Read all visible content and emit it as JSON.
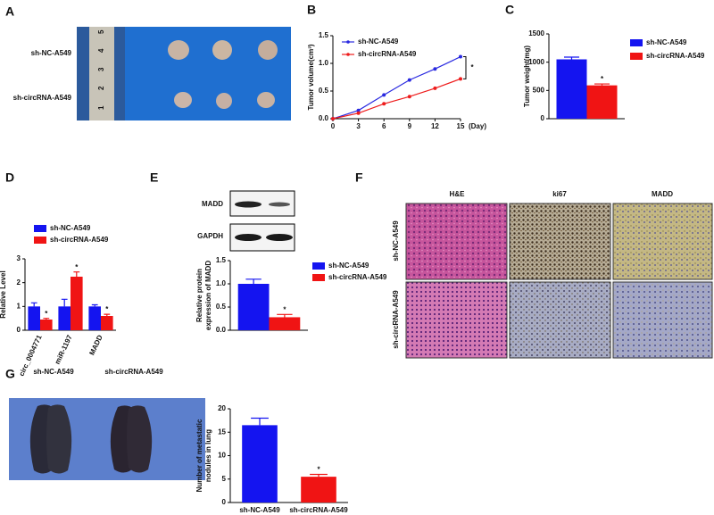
{
  "panel_letters": [
    "A",
    "B",
    "C",
    "D",
    "E",
    "F",
    "G"
  ],
  "photos": {
    "tumors": {
      "rows": [
        "sh-NC-A549",
        "sh-circRNA-A549"
      ],
      "ruler": [
        "1",
        "2",
        "3",
        "4",
        "5"
      ]
    },
    "blot": {
      "bands": [
        "MADD",
        "GAPDH"
      ]
    },
    "histology": {
      "columns": [
        "H&E",
        "ki67",
        "MADD"
      ],
      "rows": [
        "sh-NC-A549",
        "sh-circRNA-A549"
      ]
    },
    "lungs": {
      "columns": [
        "sh-NC-A549",
        "sh-circRNA-A549"
      ]
    }
  },
  "chart_data": [
    {
      "type": "line",
      "ylabel": "Tumor volume(cm³)",
      "xlabel": "(Day)",
      "x": [
        0,
        3,
        6,
        9,
        12,
        15
      ],
      "xlim": [
        0,
        15
      ],
      "xticks": [
        0,
        3,
        6,
        9,
        12,
        15
      ],
      "ylim": [
        0,
        1.5
      ],
      "yticks": [
        {
          "value": 0,
          "label": "0.0"
        },
        {
          "value": 0.5,
          "label": "0.5"
        },
        {
          "value": 1,
          "label": "1.0"
        },
        {
          "value": 1.5,
          "label": "1.5"
        }
      ],
      "series": [
        {
          "name": "sh-NC-A549",
          "color": "#2a2ae0",
          "values": [
            0,
            0.15,
            0.43,
            0.7,
            0.9,
            1.12
          ]
        },
        {
          "name": "sh-circRNA-A549",
          "color": "#ee1c1c",
          "values": [
            0,
            0.1,
            0.27,
            0.4,
            0.55,
            0.72
          ]
        }
      ],
      "annotations": [
        "*"
      ]
    },
    {
      "type": "bar",
      "ylabel": "Tumor weight(mg)",
      "categories": [
        null
      ],
      "ylim": [
        0,
        1500
      ],
      "yticks": [
        0,
        500,
        1000,
        1500
      ],
      "series": [
        {
          "name": "sh-NC-A549",
          "color": "#1414f0",
          "values": [
            1050
          ],
          "errors": [
            40
          ]
        },
        {
          "name": "sh-circRNA-A549",
          "color": "#f01414",
          "values": [
            590
          ],
          "errors": [
            25
          ]
        }
      ],
      "annotations": [
        "*"
      ]
    },
    {
      "type": "bar",
      "ylabel": "Relative Level",
      "categories": [
        "circ_0004771",
        "miR-1197",
        "MADD"
      ],
      "ylim": [
        0,
        3
      ],
      "yticks": [
        0,
        1,
        2,
        3
      ],
      "series": [
        {
          "name": "sh-NC-A549",
          "color": "#1414f0",
          "values": [
            1,
            1,
            1
          ],
          "errors": [
            0.15,
            0.3,
            0.07
          ]
        },
        {
          "name": "sh-circRNA-A549",
          "color": "#f01414",
          "values": [
            0.45,
            2.25,
            0.6
          ],
          "errors": [
            0.05,
            0.2,
            0.07
          ]
        }
      ],
      "annotations": [
        "*",
        "*",
        "*"
      ]
    },
    {
      "type": "bar",
      "ylabel_lines": [
        "Relative protein",
        "expression of MADD"
      ],
      "categories": [
        null
      ],
      "ylim": [
        0,
        1.5
      ],
      "yticks": [
        {
          "value": 0,
          "label": "0.0"
        },
        {
          "value": 0.5,
          "label": "0.5"
        },
        {
          "value": 1,
          "label": "1.0"
        },
        {
          "value": 1.5,
          "label": "1.5"
        }
      ],
      "series": [
        {
          "name": "sh-NC-A549",
          "color": "#1414f0",
          "values": [
            1
          ],
          "errors": [
            0.1
          ]
        },
        {
          "name": "sh-circRNA-A549",
          "color": "#f01414",
          "values": [
            0.28
          ],
          "errors": [
            0.06
          ]
        }
      ],
      "annotations": [
        "*"
      ]
    },
    {
      "type": "bar",
      "ylabel_lines": [
        "Number of metastatic",
        "nodules in lung"
      ],
      "categories": [
        "sh-NC-A549",
        "sh-circRNA-A549"
      ],
      "values": [
        16.5,
        5.5
      ],
      "errors": [
        1.5,
        0.5
      ],
      "colors": [
        "#1414f0",
        "#f01414"
      ],
      "ylim": [
        0,
        20
      ],
      "yticks": [
        0,
        5,
        10,
        15,
        20
      ],
      "annotations": [
        "*"
      ]
    }
  ]
}
